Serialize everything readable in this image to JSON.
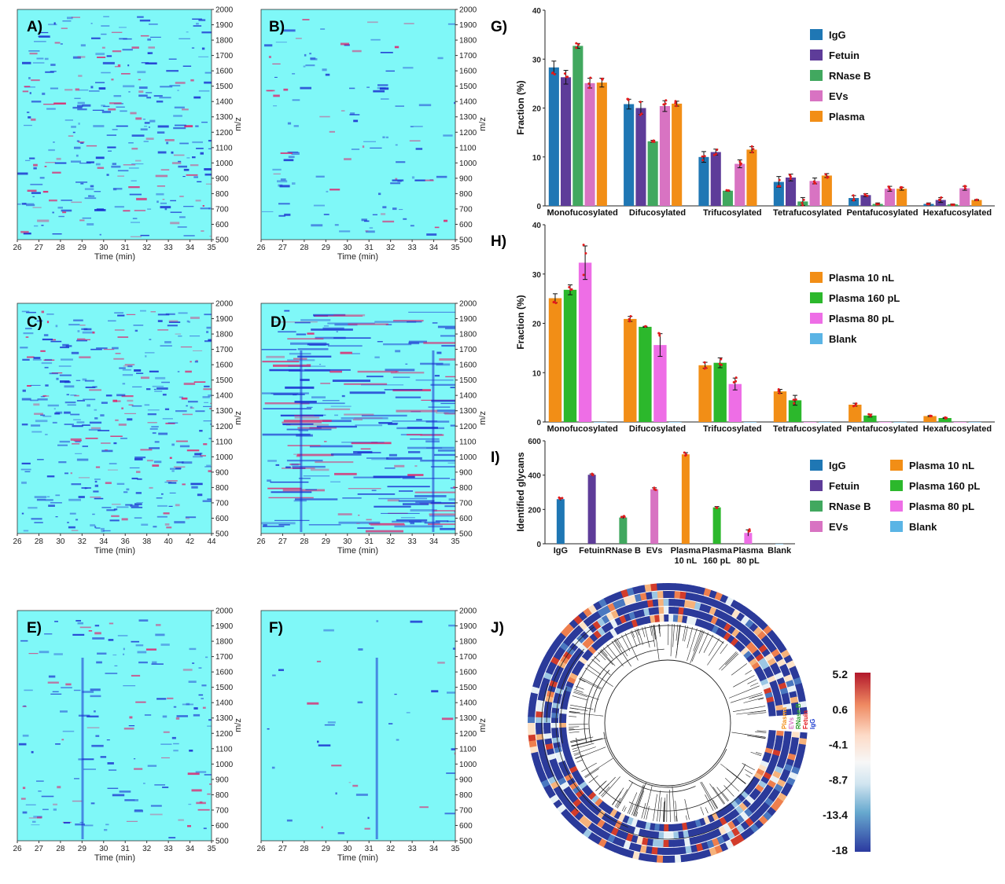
{
  "colors": {
    "IgG": "#1f77b4",
    "Fetuin": "#5e3c99",
    "RNase B": "#41a85f",
    "EVs": "#d873c2",
    "Plasma": "#f28e16",
    "Plasma 10 nL": "#f28e16",
    "Plasma 160 pL": "#2cb82c",
    "Plasma 80 pL": "#ee6ee6",
    "Blank": "#5ab4e5",
    "heat_bg": "#7ff8f8",
    "heat_dark": "#1a2fd0",
    "heat_hot": "#e0206a"
  },
  "heatmaps": [
    {
      "label": "A)",
      "x_ticks": [
        "26",
        "27",
        "28",
        "29",
        "30",
        "31",
        "32",
        "33",
        "34",
        "35"
      ],
      "xlabel": "Time (min)",
      "y_ticks": [
        "2000",
        "1900",
        "1800",
        "1700",
        "1600",
        "1500",
        "1400",
        "1300",
        "1200",
        "1100",
        "1000",
        "900",
        "800",
        "700",
        "600",
        "500"
      ],
      "ylabel": "m/z"
    },
    {
      "label": "B)",
      "x_ticks": [
        "26",
        "27",
        "28",
        "29",
        "30",
        "31",
        "32",
        "33",
        "34",
        "35"
      ],
      "xlabel": "Time (min)",
      "y_ticks": [
        "2000",
        "1900",
        "1800",
        "1700",
        "1600",
        "1500",
        "1400",
        "1300",
        "1200",
        "1100",
        "1000",
        "900",
        "800",
        "700",
        "600",
        "500"
      ],
      "ylabel": "m/z"
    },
    {
      "label": "C)",
      "x_ticks": [
        "26",
        "28",
        "30",
        "32",
        "34",
        "36",
        "38",
        "40",
        "42",
        "44"
      ],
      "xlabel": "Time (min)",
      "y_ticks": [
        "2000",
        "1900",
        "1800",
        "1700",
        "1600",
        "1500",
        "1400",
        "1300",
        "1200",
        "1100",
        "1000",
        "900",
        "800",
        "700",
        "600",
        "500"
      ],
      "ylabel": "m/z"
    },
    {
      "label": "D)",
      "x_ticks": [
        "26",
        "27",
        "28",
        "29",
        "30",
        "31",
        "32",
        "33",
        "34",
        "35"
      ],
      "xlabel": "Time (min)",
      "y_ticks": [
        "2000",
        "1900",
        "1800",
        "1700",
        "1600",
        "1500",
        "1400",
        "1300",
        "1200",
        "1100",
        "1000",
        "900",
        "800",
        "700",
        "600",
        "500"
      ],
      "ylabel": "m/z"
    },
    {
      "label": "E)",
      "x_ticks": [
        "26",
        "27",
        "28",
        "29",
        "30",
        "31",
        "32",
        "33",
        "34",
        "35"
      ],
      "xlabel": "Time (min)",
      "y_ticks": [
        "2000",
        "1900",
        "1800",
        "1700",
        "1600",
        "1500",
        "1400",
        "1300",
        "1200",
        "1100",
        "1000",
        "900",
        "800",
        "700",
        "600",
        "500"
      ],
      "ylabel": "m/z"
    },
    {
      "label": "F)",
      "x_ticks": [
        "26",
        "27",
        "28",
        "29",
        "30",
        "31",
        "32",
        "33",
        "34",
        "35"
      ],
      "xlabel": "Time (min)",
      "y_ticks": [
        "2000",
        "1900",
        "1800",
        "1700",
        "1600",
        "1500",
        "1400",
        "1300",
        "1200",
        "1100",
        "1000",
        "900",
        "800",
        "700",
        "600",
        "500"
      ],
      "ylabel": "m/z"
    }
  ],
  "chart_data": [
    {
      "label": "G)",
      "type": "bar",
      "ylabel": "Fraction (%)",
      "ylim": [
        0,
        40
      ],
      "y_ticks": [
        0,
        10,
        20,
        30,
        40
      ],
      "categories": [
        "Monofucosylated",
        "Difucosylated",
        "Trifucosylated",
        "Tetrafucosylated",
        "Pentafucosylated",
        "Hexafucosylated"
      ],
      "series": [
        {
          "name": "IgG",
          "values": [
            28.3,
            20.8,
            10.0,
            4.9,
            1.6,
            0.4
          ]
        },
        {
          "name": "Fetuin",
          "values": [
            26.3,
            20.0,
            11.0,
            5.8,
            2.2,
            1.2
          ]
        },
        {
          "name": "RNase B",
          "values": [
            32.7,
            13.2,
            3.1,
            0.9,
            0.4,
            0.3
          ]
        },
        {
          "name": "EVs",
          "values": [
            25.1,
            20.4,
            8.6,
            5.1,
            3.5,
            3.6
          ]
        },
        {
          "name": "Plasma",
          "values": [
            25.2,
            20.9,
            11.5,
            6.2,
            3.5,
            1.2
          ]
        }
      ],
      "errors": [
        [
          1.3,
          1.0,
          1.1,
          1.1,
          0.5,
          0.2
        ],
        [
          1.4,
          1.3,
          0.6,
          0.7,
          0.3,
          0.5
        ],
        [
          0.5,
          0.2,
          0.1,
          0.8,
          0.2,
          0.1
        ],
        [
          1.0,
          1.1,
          0.8,
          0.6,
          0.5,
          0.4
        ],
        [
          0.9,
          0.5,
          0.6,
          0.4,
          0.3,
          0.1
        ]
      ],
      "legend": [
        "IgG",
        "Fetuin",
        "RNase B",
        "EVs",
        "Plasma"
      ]
    },
    {
      "label": "H)",
      "type": "bar",
      "ylabel": "Fraction (%)",
      "ylim": [
        0,
        40
      ],
      "y_ticks": [
        0,
        10,
        20,
        30,
        40
      ],
      "categories": [
        "Monofucosylated",
        "Difucosylated",
        "Trifucosylated",
        "Tetrafucosylated",
        "Pentafucosylated",
        "Hexafucosylated"
      ],
      "series": [
        {
          "name": "Plasma 10 nL",
          "values": [
            25.1,
            20.9,
            11.5,
            6.2,
            3.5,
            1.2
          ]
        },
        {
          "name": "Plasma 160 pL",
          "values": [
            26.8,
            19.3,
            12.0,
            4.4,
            1.3,
            0.8
          ]
        },
        {
          "name": "Plasma 80 pL",
          "values": [
            32.3,
            15.6,
            7.7,
            0,
            0,
            0
          ]
        },
        {
          "name": "Blank",
          "values": [
            0,
            0,
            0,
            0,
            0,
            0
          ]
        }
      ],
      "errors": [
        [
          0.9,
          0.5,
          0.6,
          0.4,
          0.3,
          0.1
        ],
        [
          1.0,
          0.1,
          1.0,
          1.0,
          0.3,
          0.1
        ],
        [
          3.4,
          2.3,
          1.2,
          0,
          0,
          0
        ],
        [
          0,
          0,
          0,
          0,
          0,
          0
        ]
      ],
      "legend": [
        "Plasma 10 nL",
        "Plasma 160 pL",
        "Plasma 80 pL",
        "Blank"
      ]
    },
    {
      "label": "I)",
      "type": "bar",
      "ylabel": "Identified glycans",
      "ylim": [
        0,
        600
      ],
      "y_ticks": [
        0,
        200,
        400,
        600
      ],
      "categories": [
        "IgG",
        "Fetuin",
        "RNase B",
        "EVs",
        "Plasma 10 nL",
        "Plasma 160 pL",
        "Plasma 80 pL",
        "Blank"
      ],
      "category_lines": [
        [
          "IgG"
        ],
        [
          "Fetuin"
        ],
        [
          "RNase B"
        ],
        [
          "EVs"
        ],
        [
          "Plasma",
          "10 nL"
        ],
        [
          "Plasma",
          "160 pL"
        ],
        [
          "Plasma",
          "80 pL"
        ],
        [
          "Blank"
        ]
      ],
      "values": [
        260,
        402,
        153,
        318,
        521,
        212,
        63,
        0
      ],
      "errors": [
        8,
        5,
        7,
        8,
        10,
        5,
        18,
        0
      ],
      "legend": [
        "IgG",
        "Fetuin",
        "RNase B",
        "EVs",
        "Plasma 10 nL",
        "Plasma 160 pL",
        "Plasma 80 pL",
        "Blank"
      ]
    },
    {
      "label": "J)",
      "type": "heatmap",
      "rings": [
        "Plasma",
        "EVs",
        "RNase B",
        "Fetuin",
        "IgG"
      ],
      "ring_label_colors": [
        "#f28e16",
        "#d873c2",
        "#2ca02c",
        "#e31a1c",
        "#1f3fd0"
      ],
      "colorbar_ticks": [
        "5.2",
        "0.6",
        "-4.1",
        "-8.7",
        "-13.4",
        "-18"
      ],
      "range": [
        -18,
        5.2
      ]
    }
  ]
}
